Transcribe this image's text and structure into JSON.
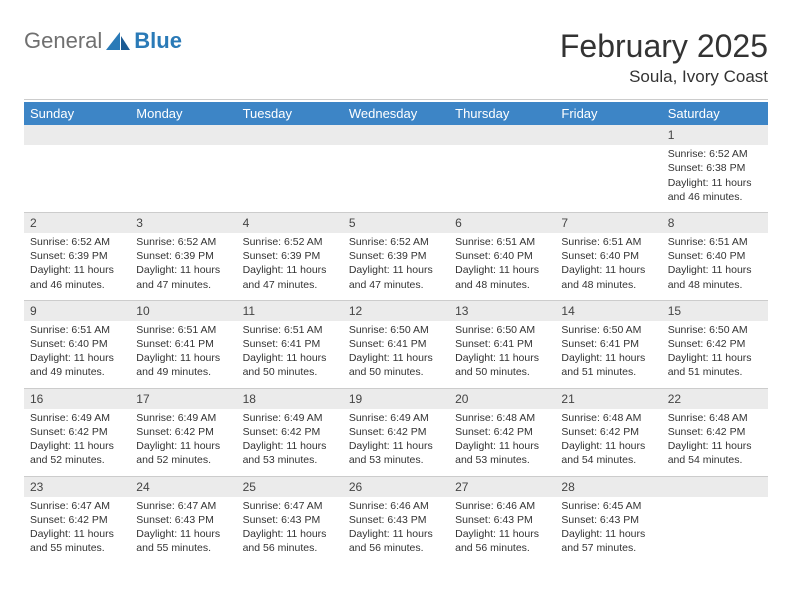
{
  "logo": {
    "text1": "General",
    "text2": "Blue"
  },
  "title": {
    "month": "February 2025",
    "location": "Soula, Ivory Coast"
  },
  "colors": {
    "header_bg": "#3d85c6",
    "header_text": "#ffffff",
    "daynum_bg": "#ebebeb",
    "text": "#333333",
    "divider": "#cccccc",
    "logo_gray": "#707070",
    "logo_blue": "#2a7ab7"
  },
  "weekdays": [
    "Sunday",
    "Monday",
    "Tuesday",
    "Wednesday",
    "Thursday",
    "Friday",
    "Saturday"
  ],
  "weeks": [
    {
      "nums": [
        "",
        "",
        "",
        "",
        "",
        "",
        "1"
      ],
      "cells": [
        null,
        null,
        null,
        null,
        null,
        null,
        {
          "sunrise": "Sunrise: 6:52 AM",
          "sunset": "Sunset: 6:38 PM",
          "daylight1": "Daylight: 11 hours",
          "daylight2": "and 46 minutes."
        }
      ]
    },
    {
      "nums": [
        "2",
        "3",
        "4",
        "5",
        "6",
        "7",
        "8"
      ],
      "cells": [
        {
          "sunrise": "Sunrise: 6:52 AM",
          "sunset": "Sunset: 6:39 PM",
          "daylight1": "Daylight: 11 hours",
          "daylight2": "and 46 minutes."
        },
        {
          "sunrise": "Sunrise: 6:52 AM",
          "sunset": "Sunset: 6:39 PM",
          "daylight1": "Daylight: 11 hours",
          "daylight2": "and 47 minutes."
        },
        {
          "sunrise": "Sunrise: 6:52 AM",
          "sunset": "Sunset: 6:39 PM",
          "daylight1": "Daylight: 11 hours",
          "daylight2": "and 47 minutes."
        },
        {
          "sunrise": "Sunrise: 6:52 AM",
          "sunset": "Sunset: 6:39 PM",
          "daylight1": "Daylight: 11 hours",
          "daylight2": "and 47 minutes."
        },
        {
          "sunrise": "Sunrise: 6:51 AM",
          "sunset": "Sunset: 6:40 PM",
          "daylight1": "Daylight: 11 hours",
          "daylight2": "and 48 minutes."
        },
        {
          "sunrise": "Sunrise: 6:51 AM",
          "sunset": "Sunset: 6:40 PM",
          "daylight1": "Daylight: 11 hours",
          "daylight2": "and 48 minutes."
        },
        {
          "sunrise": "Sunrise: 6:51 AM",
          "sunset": "Sunset: 6:40 PM",
          "daylight1": "Daylight: 11 hours",
          "daylight2": "and 48 minutes."
        }
      ]
    },
    {
      "nums": [
        "9",
        "10",
        "11",
        "12",
        "13",
        "14",
        "15"
      ],
      "cells": [
        {
          "sunrise": "Sunrise: 6:51 AM",
          "sunset": "Sunset: 6:40 PM",
          "daylight1": "Daylight: 11 hours",
          "daylight2": "and 49 minutes."
        },
        {
          "sunrise": "Sunrise: 6:51 AM",
          "sunset": "Sunset: 6:41 PM",
          "daylight1": "Daylight: 11 hours",
          "daylight2": "and 49 minutes."
        },
        {
          "sunrise": "Sunrise: 6:51 AM",
          "sunset": "Sunset: 6:41 PM",
          "daylight1": "Daylight: 11 hours",
          "daylight2": "and 50 minutes."
        },
        {
          "sunrise": "Sunrise: 6:50 AM",
          "sunset": "Sunset: 6:41 PM",
          "daylight1": "Daylight: 11 hours",
          "daylight2": "and 50 minutes."
        },
        {
          "sunrise": "Sunrise: 6:50 AM",
          "sunset": "Sunset: 6:41 PM",
          "daylight1": "Daylight: 11 hours",
          "daylight2": "and 50 minutes."
        },
        {
          "sunrise": "Sunrise: 6:50 AM",
          "sunset": "Sunset: 6:41 PM",
          "daylight1": "Daylight: 11 hours",
          "daylight2": "and 51 minutes."
        },
        {
          "sunrise": "Sunrise: 6:50 AM",
          "sunset": "Sunset: 6:42 PM",
          "daylight1": "Daylight: 11 hours",
          "daylight2": "and 51 minutes."
        }
      ]
    },
    {
      "nums": [
        "16",
        "17",
        "18",
        "19",
        "20",
        "21",
        "22"
      ],
      "cells": [
        {
          "sunrise": "Sunrise: 6:49 AM",
          "sunset": "Sunset: 6:42 PM",
          "daylight1": "Daylight: 11 hours",
          "daylight2": "and 52 minutes."
        },
        {
          "sunrise": "Sunrise: 6:49 AM",
          "sunset": "Sunset: 6:42 PM",
          "daylight1": "Daylight: 11 hours",
          "daylight2": "and 52 minutes."
        },
        {
          "sunrise": "Sunrise: 6:49 AM",
          "sunset": "Sunset: 6:42 PM",
          "daylight1": "Daylight: 11 hours",
          "daylight2": "and 53 minutes."
        },
        {
          "sunrise": "Sunrise: 6:49 AM",
          "sunset": "Sunset: 6:42 PM",
          "daylight1": "Daylight: 11 hours",
          "daylight2": "and 53 minutes."
        },
        {
          "sunrise": "Sunrise: 6:48 AM",
          "sunset": "Sunset: 6:42 PM",
          "daylight1": "Daylight: 11 hours",
          "daylight2": "and 53 minutes."
        },
        {
          "sunrise": "Sunrise: 6:48 AM",
          "sunset": "Sunset: 6:42 PM",
          "daylight1": "Daylight: 11 hours",
          "daylight2": "and 54 minutes."
        },
        {
          "sunrise": "Sunrise: 6:48 AM",
          "sunset": "Sunset: 6:42 PM",
          "daylight1": "Daylight: 11 hours",
          "daylight2": "and 54 minutes."
        }
      ]
    },
    {
      "nums": [
        "23",
        "24",
        "25",
        "26",
        "27",
        "28",
        ""
      ],
      "cells": [
        {
          "sunrise": "Sunrise: 6:47 AM",
          "sunset": "Sunset: 6:42 PM",
          "daylight1": "Daylight: 11 hours",
          "daylight2": "and 55 minutes."
        },
        {
          "sunrise": "Sunrise: 6:47 AM",
          "sunset": "Sunset: 6:43 PM",
          "daylight1": "Daylight: 11 hours",
          "daylight2": "and 55 minutes."
        },
        {
          "sunrise": "Sunrise: 6:47 AM",
          "sunset": "Sunset: 6:43 PM",
          "daylight1": "Daylight: 11 hours",
          "daylight2": "and 56 minutes."
        },
        {
          "sunrise": "Sunrise: 6:46 AM",
          "sunset": "Sunset: 6:43 PM",
          "daylight1": "Daylight: 11 hours",
          "daylight2": "and 56 minutes."
        },
        {
          "sunrise": "Sunrise: 6:46 AM",
          "sunset": "Sunset: 6:43 PM",
          "daylight1": "Daylight: 11 hours",
          "daylight2": "and 56 minutes."
        },
        {
          "sunrise": "Sunrise: 6:45 AM",
          "sunset": "Sunset: 6:43 PM",
          "daylight1": "Daylight: 11 hours",
          "daylight2": "and 57 minutes."
        },
        null
      ]
    }
  ]
}
